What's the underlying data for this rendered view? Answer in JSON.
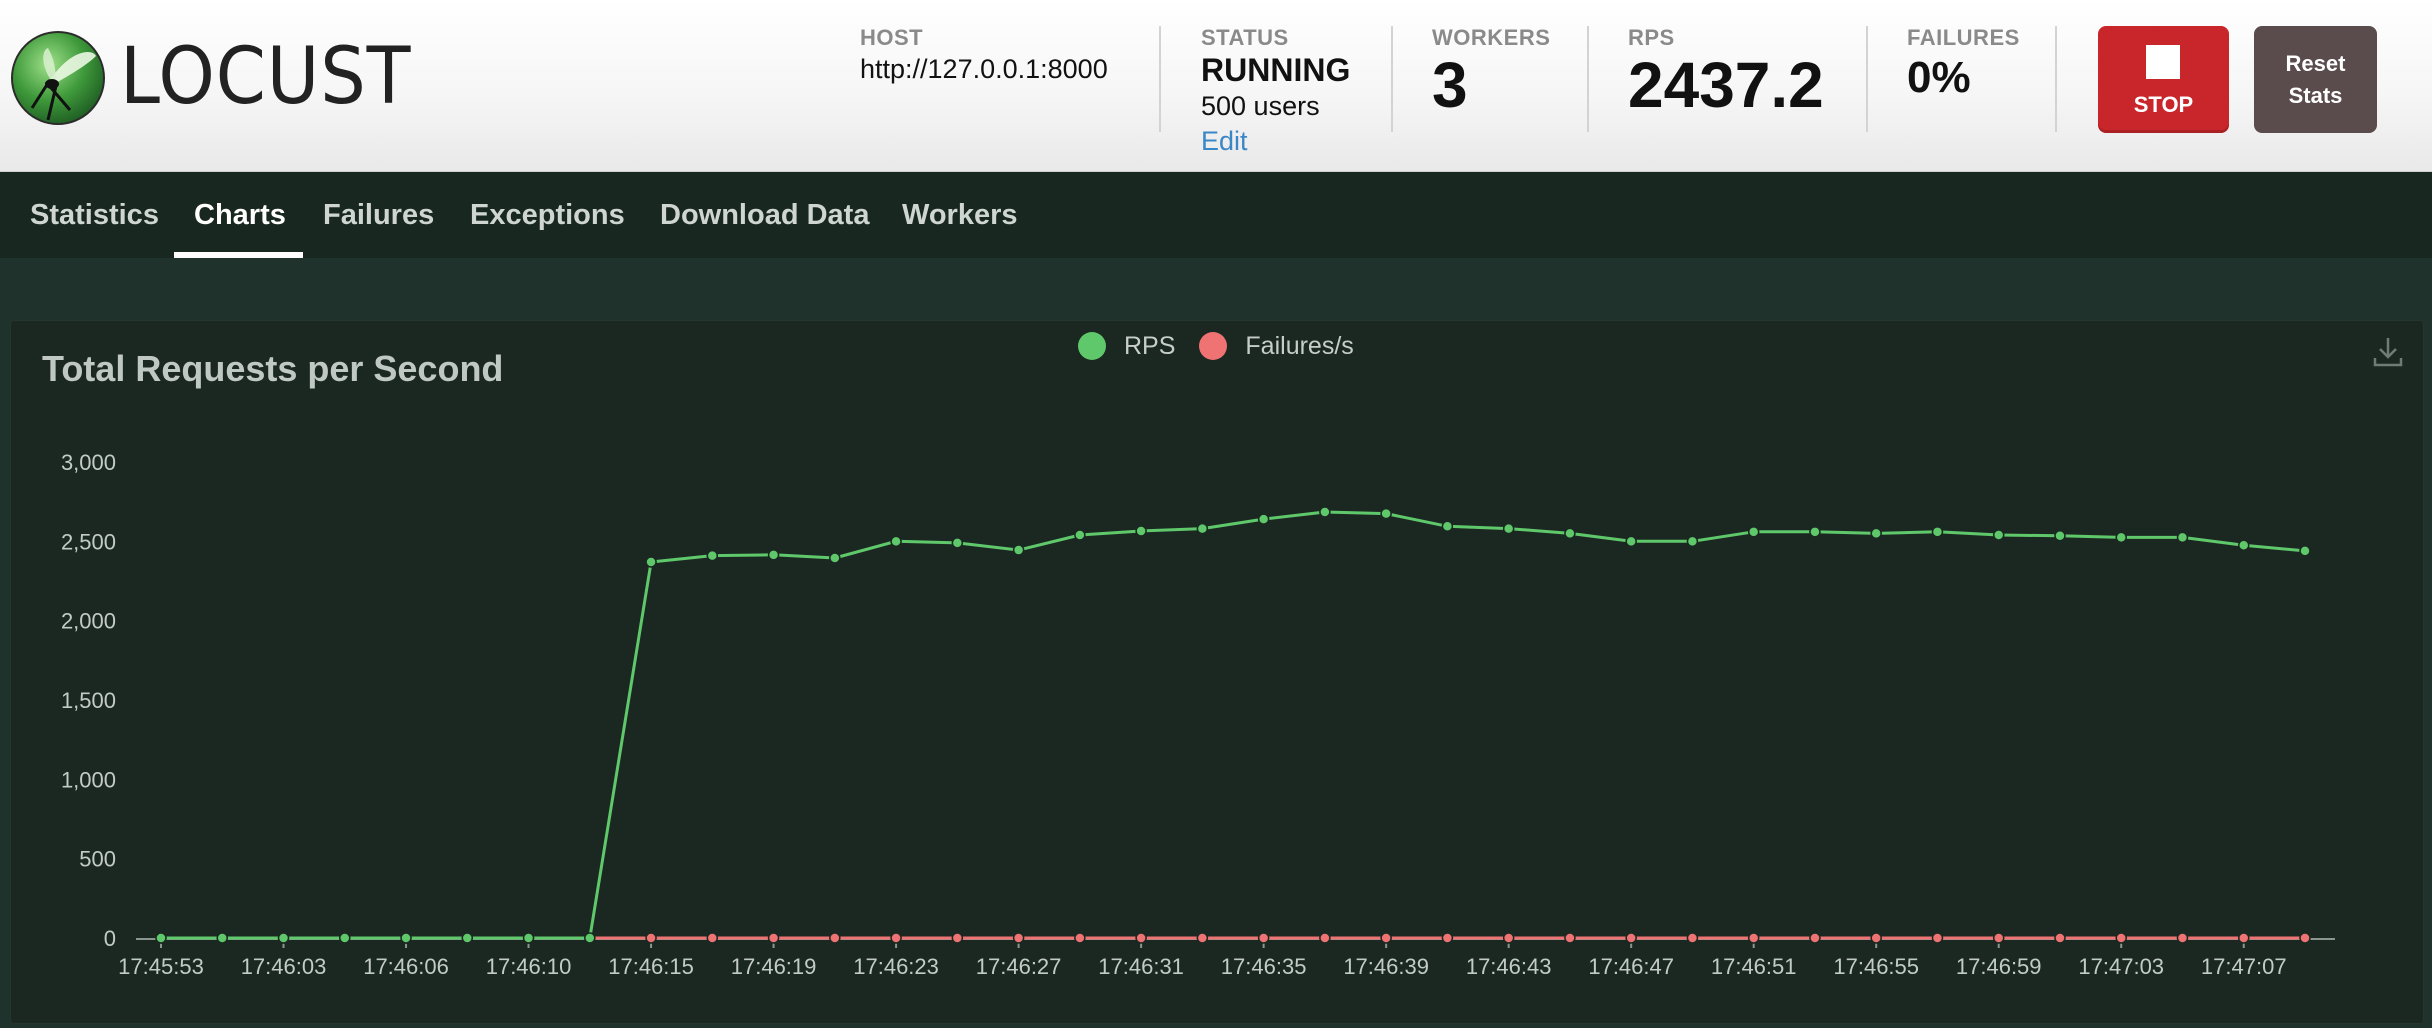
{
  "app": {
    "logo_text": "LOCUST"
  },
  "header": {
    "host": {
      "label": "HOST",
      "value": "http://127.0.0.1:8000"
    },
    "status": {
      "label": "STATUS",
      "value": "RUNNING",
      "users": "500 users",
      "edit": "Edit"
    },
    "workers": {
      "label": "WORKERS",
      "value": "3"
    },
    "rps": {
      "label": "RPS",
      "value": "2437.2"
    },
    "failures": {
      "label": "FAILURES",
      "value": "0%"
    },
    "stop_label": "STOP",
    "reset_label": "Reset Stats"
  },
  "nav": {
    "tabs": [
      {
        "label": "Statistics",
        "active": false
      },
      {
        "label": "Charts",
        "active": true
      },
      {
        "label": "Failures",
        "active": false
      },
      {
        "label": "Exceptions",
        "active": false
      },
      {
        "label": "Download Data",
        "active": false
      },
      {
        "label": "Workers",
        "active": false
      }
    ]
  },
  "colors": {
    "rps_series": "#5fc86a",
    "failures_series": "#f07373",
    "stop_button": "#c8262a",
    "reset_button": "#5a4c4c",
    "link": "#3a87c8"
  },
  "chart_data": {
    "type": "line",
    "title": "Total Requests per Second",
    "legend_position": "top-center",
    "grid": false,
    "ylim": [
      0,
      3000
    ],
    "yticks": [
      "0",
      "500",
      "1,000",
      "1,500",
      "2,000",
      "2,500",
      "3,000"
    ],
    "x_tick_labels": [
      "17:45:53",
      "17:46:03",
      "17:46:06",
      "17:46:10",
      "17:46:15",
      "17:46:19",
      "17:46:23",
      "17:46:27",
      "17:46:31",
      "17:46:35",
      "17:46:39",
      "17:46:43",
      "17:46:47",
      "17:46:51",
      "17:46:55",
      "17:46:59",
      "17:47:03",
      "17:47:07"
    ],
    "series": [
      {
        "name": "RPS",
        "color": "#5fc86a",
        "values": [
          0,
          0,
          0,
          0,
          0,
          0,
          0,
          0,
          2370,
          2410,
          2415,
          2395,
          2500,
          2490,
          2445,
          2540,
          2565,
          2580,
          2640,
          2685,
          2675,
          2595,
          2580,
          2550,
          2500,
          2500,
          2560,
          2560,
          2550,
          2560,
          2540,
          2535,
          2525,
          2525,
          2475,
          2440
        ]
      },
      {
        "name": "Failures/s",
        "color": "#f07373",
        "values": [
          0,
          0,
          0,
          0,
          0,
          0,
          0,
          0,
          0,
          0,
          0,
          0,
          0,
          0,
          0,
          0,
          0,
          0,
          0,
          0,
          0,
          0,
          0,
          0,
          0,
          0,
          0,
          0,
          0,
          0,
          0,
          0,
          0,
          0,
          0,
          0
        ]
      }
    ]
  }
}
